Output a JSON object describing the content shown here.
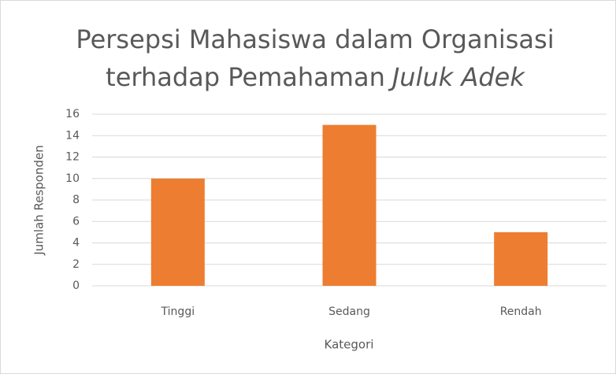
{
  "chart_data": {
    "type": "bar",
    "title": [
      {
        "text": "Persepsi Mahasiswa dalam Organisasi"
      },
      {
        "text": "terhadap Pemahaman"
      },
      {
        "text": "Juluk Adek",
        "italic": true
      }
    ],
    "categories": [
      "Tinggi",
      "Sedang",
      "Rendah"
    ],
    "values": [
      10,
      15,
      5
    ],
    "color": "#ed7d31",
    "xlabel": "Kategori",
    "ylabel": "Jumlah Responden",
    "ylim": [
      0,
      16
    ],
    "yticks": [
      0,
      2,
      4,
      6,
      8,
      10,
      12,
      14,
      16
    ],
    "grid": true
  }
}
